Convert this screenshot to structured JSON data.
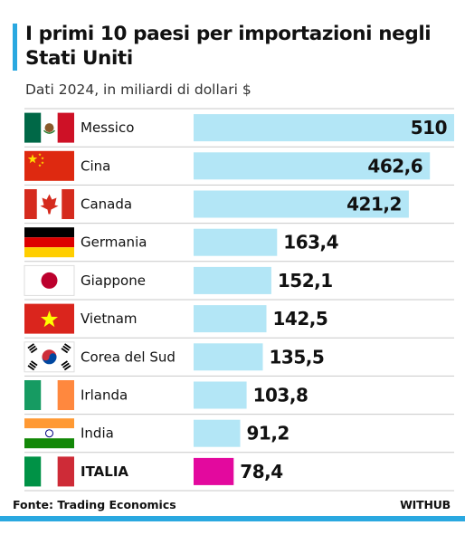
{
  "header": {
    "title": "I primi 10 paesi per importazioni negli Stati Uniti",
    "subtitle": "Dati 2024, in miliardi di dollari $"
  },
  "footer": {
    "source": "Fonte: Trading Economics",
    "brand": "WITHUB"
  },
  "colors": {
    "accent": "#2aa8e0",
    "bar": "#b3e6f6",
    "highlight": "#e3099e",
    "separator": "#c8c8c8"
  },
  "chart_data": {
    "type": "bar",
    "orientation": "horizontal",
    "title": "I primi 10 paesi per importazioni negli Stati Uniti",
    "subtitle": "Dati 2024, in miliardi di dollari $",
    "categories": [
      "Messico",
      "Cina",
      "Canada",
      "Germania",
      "Giappone",
      "Vietnam",
      "Corea del Sud",
      "Irlanda",
      "India",
      "ITALIA"
    ],
    "values": [
      510,
      462.6,
      421.2,
      163.4,
      152.1,
      142.5,
      135.5,
      103.8,
      91.2,
      78.4
    ],
    "value_labels": [
      "510",
      "462,6",
      "421,2",
      "163,4",
      "152,1",
      "142,5",
      "135,5",
      "103,8",
      "91,2",
      "78,4"
    ],
    "flag_icons": [
      "mexico-flag-icon",
      "china-flag-icon",
      "canada-flag-icon",
      "germany-flag-icon",
      "japan-flag-icon",
      "vietnam-flag-icon",
      "south-korea-flag-icon",
      "ireland-flag-icon",
      "india-flag-icon",
      "italy-flag-icon"
    ],
    "highlighted_category": "ITALIA",
    "xlim": [
      0,
      510
    ],
    "grid": false,
    "legend": "none"
  }
}
